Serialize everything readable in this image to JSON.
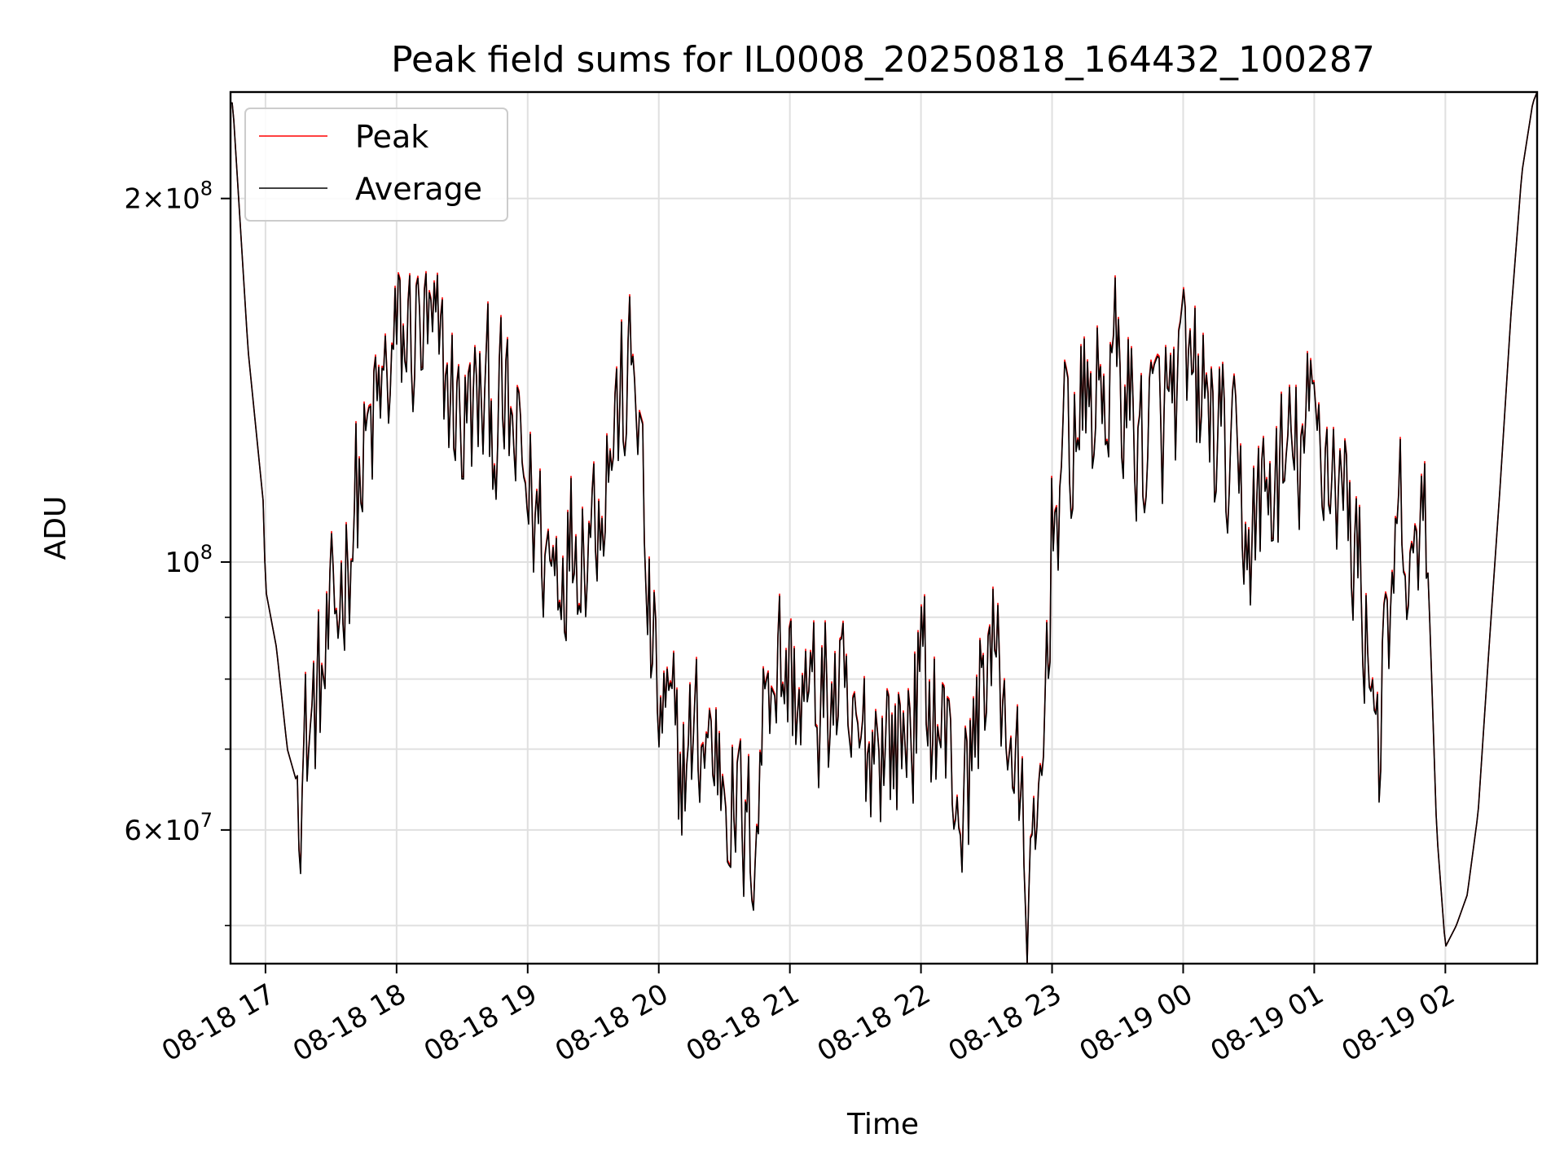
{
  "chart_data": {
    "type": "line",
    "title": "Peak field sums for IL0008_20250818_164432_100287",
    "xlabel": "Time",
    "ylabel": "ADU",
    "yscale": "log",
    "ylim": [
      46500000,
      245000000
    ],
    "xlim": [
      "2025-08-18 16:44",
      "2025-08-19 02:42"
    ],
    "grid": true,
    "legend": "upper left",
    "x_ticks": [
      "08-18 17",
      "08-18 18",
      "08-18 19",
      "08-18 20",
      "08-18 21",
      "08-18 22",
      "08-18 23",
      "08-19 00",
      "08-19 01",
      "08-19 02"
    ],
    "y_ticks": [
      {
        "value": 200000000,
        "mant": "2×10",
        "exp": "8"
      },
      {
        "value": 100000000,
        "mant": "10",
        "exp": "8"
      },
      {
        "value": 60000000,
        "mant": "6×10",
        "exp": "7"
      }
    ],
    "y_minor_ticks": [
      50000000,
      70000000,
      80000000,
      90000000
    ],
    "colors": {
      "Peak": "#ff0000",
      "Average": "#000000"
    },
    "x": [
      "2025-08-18 16:45",
      "2025-08-18 16:52",
      "2025-08-18 16:59",
      "2025-08-18 17:00",
      "2025-08-18 17:05",
      "2025-08-18 17:10",
      "2025-08-18 17:14",
      "2025-08-18 17:20",
      "2025-08-18 17:30",
      "2025-08-18 17:40",
      "2025-08-18 17:50",
      "2025-08-18 18:00",
      "2025-08-18 18:10",
      "2025-08-18 18:20",
      "2025-08-18 18:30",
      "2025-08-18 18:40",
      "2025-08-18 18:50",
      "2025-08-18 19:00",
      "2025-08-18 19:10",
      "2025-08-18 19:20",
      "2025-08-18 19:30",
      "2025-08-18 19:40",
      "2025-08-18 19:50",
      "2025-08-18 19:55",
      "2025-08-18 20:00",
      "2025-08-18 20:10",
      "2025-08-18 20:20",
      "2025-08-18 20:30",
      "2025-08-18 20:40",
      "2025-08-18 20:45",
      "2025-08-18 20:50",
      "2025-08-18 21:00",
      "2025-08-18 21:10",
      "2025-08-18 21:20",
      "2025-08-18 21:30",
      "2025-08-18 21:40",
      "2025-08-18 21:50",
      "2025-08-18 22:00",
      "2025-08-18 22:10",
      "2025-08-18 22:20",
      "2025-08-18 22:30",
      "2025-08-18 22:40",
      "2025-08-18 22:48",
      "2025-08-18 22:52",
      "2025-08-18 22:56",
      "2025-08-18 23:00",
      "2025-08-18 23:10",
      "2025-08-18 23:20",
      "2025-08-18 23:30",
      "2025-08-18 23:40",
      "2025-08-18 23:50",
      "2025-08-19 00:00",
      "2025-08-19 00:10",
      "2025-08-19 00:20",
      "2025-08-19 00:30",
      "2025-08-19 00:40",
      "2025-08-19 00:50",
      "2025-08-19 01:00",
      "2025-08-19 01:10",
      "2025-08-19 01:20",
      "2025-08-19 01:27",
      "2025-08-19 01:30",
      "2025-08-19 01:40",
      "2025-08-19 01:45",
      "2025-08-19 01:50",
      "2025-08-19 01:53",
      "2025-08-19 01:56",
      "2025-08-19 02:00",
      "2025-08-19 02:05",
      "2025-08-19 02:10",
      "2025-08-19 02:15",
      "2025-08-19 02:20",
      "2025-08-19 02:25",
      "2025-08-19 02:30",
      "2025-08-19 02:35",
      "2025-08-19 02:40",
      "2025-08-19 02:42"
    ],
    "series": [
      {
        "name": "Peak",
        "values": [
          240000000,
          150000000,
          112000000,
          95000000,
          85000000,
          70000000,
          66000000,
          72000000,
          85000000,
          110000000,
          130000000,
          150000000,
          155000000,
          145000000,
          130000000,
          135000000,
          130000000,
          115000000,
          100000000,
          105000000,
          110000000,
          130000000,
          145000000,
          90000000,
          75000000,
          68000000,
          72000000,
          68000000,
          58000000,
          62000000,
          85000000,
          80000000,
          75000000,
          78000000,
          68000000,
          73000000,
          70000000,
          80000000,
          72000000,
          62000000,
          86000000,
          75000000,
          55000000,
          52000000,
          70000000,
          110000000,
          130000000,
          135000000,
          145000000,
          125000000,
          130000000,
          140000000,
          135000000,
          120000000,
          105000000,
          115000000,
          120000000,
          130000000,
          120000000,
          100000000,
          80000000,
          72000000,
          108000000,
          88000000,
          123000000,
          88000000,
          60000000,
          48000000,
          50000000,
          53000000,
          62000000,
          85000000,
          115000000,
          160000000,
          210000000,
          240000000,
          245000000
        ]
      },
      {
        "name": "Average",
        "values": [
          240000000,
          150000000,
          112000000,
          95000000,
          85000000,
          70000000,
          66000000,
          72000000,
          85000000,
          110000000,
          130000000,
          150000000,
          155000000,
          145000000,
          130000000,
          135000000,
          130000000,
          115000000,
          100000000,
          105000000,
          110000000,
          130000000,
          145000000,
          90000000,
          75000000,
          68000000,
          72000000,
          68000000,
          58000000,
          62000000,
          85000000,
          80000000,
          75000000,
          78000000,
          68000000,
          73000000,
          70000000,
          80000000,
          72000000,
          62000000,
          86000000,
          75000000,
          55000000,
          52000000,
          70000000,
          110000000,
          130000000,
          135000000,
          145000000,
          125000000,
          130000000,
          140000000,
          135000000,
          120000000,
          105000000,
          115000000,
          120000000,
          130000000,
          120000000,
          100000000,
          80000000,
          72000000,
          108000000,
          88000000,
          123000000,
          88000000,
          60000000,
          48000000,
          50000000,
          53000000,
          62000000,
          85000000,
          115000000,
          160000000,
          210000000,
          240000000,
          245000000
        ]
      }
    ]
  }
}
